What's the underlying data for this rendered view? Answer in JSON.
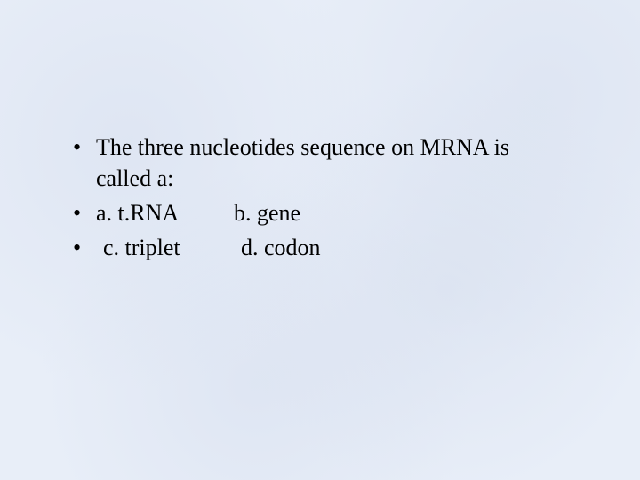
{
  "slide": {
    "background_color": "#e8eef8",
    "text_color": "#000000",
    "font_family": "Times New Roman",
    "font_size_pt": 26,
    "bullets": [
      {
        "text": "The three nucleotides sequence on MRNA is called a:"
      },
      {
        "option_left": "a. t.RNA",
        "option_right": "b. gene"
      },
      {
        "option_left": " c. triplet",
        "option_right": "d. codon"
      }
    ]
  }
}
